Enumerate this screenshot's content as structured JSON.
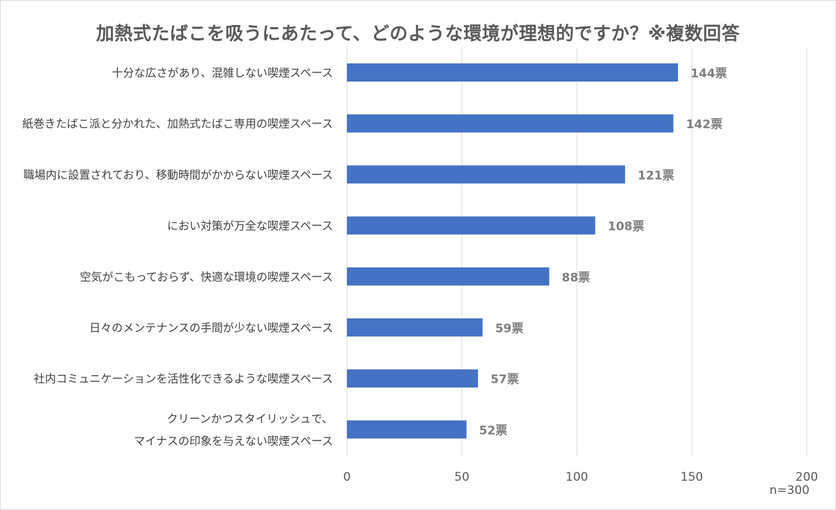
{
  "chart_data": {
    "type": "bar",
    "orientation": "horizontal",
    "title": "加熱式たばこを吸うにあたって、どのような環境が理想的ですか？※複数回答",
    "categories": [
      [
        "十分な広さがあり、混雑しない喫煙スペース"
      ],
      [
        "紙巻きたばこ派と分かれた、加熱式たばこ専用の喫煙スペース"
      ],
      [
        "職場内に設置されており、移動時間がかからない喫煙スペース"
      ],
      [
        "におい対策が万全な喫煙スペース"
      ],
      [
        "空気がこもっておらず、快適な環境の喫煙スペース"
      ],
      [
        "日々のメンテナンスの手間が少ない喫煙スペース"
      ],
      [
        "社内コミュニケーションを活性化できるような喫煙スペース"
      ],
      [
        "クリーンかつスタイリッシュで、",
        "マイナスの印象を与えない喫煙スペース"
      ]
    ],
    "values": [
      144,
      142,
      121,
      108,
      88,
      59,
      57,
      52
    ],
    "data_labels": [
      "144票",
      "142票",
      "121票",
      "108票",
      "88票",
      "59票",
      "57票",
      "52票"
    ],
    "x_ticks": [
      "0",
      "50",
      "100",
      "150",
      "200"
    ],
    "xlim": [
      0,
      200
    ],
    "grid": true,
    "bar_color": "#4472c4",
    "label_color": "#7f7f7f",
    "note": "n=300"
  }
}
